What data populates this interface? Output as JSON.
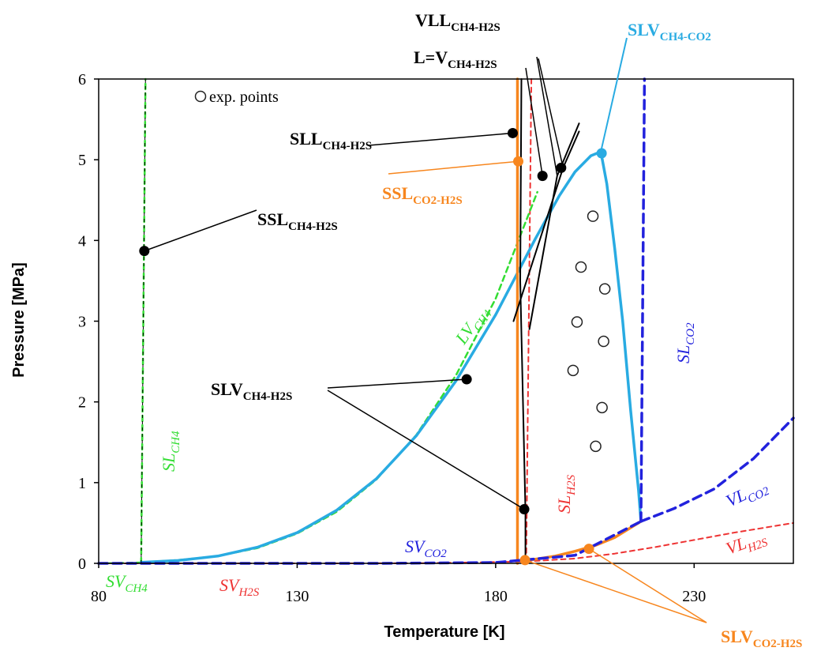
{
  "chart_data": {
    "type": "line",
    "title": "",
    "xlabel": "Temperature [K]",
    "ylabel": "Pressure [MPa]",
    "xlim": [
      80,
      255
    ],
    "ylim": [
      0,
      6
    ],
    "x_ticks": [
      80,
      130,
      180,
      230
    ],
    "y_ticks": [
      0,
      1,
      2,
      3,
      4,
      5,
      6
    ],
    "grid": false,
    "legend": {
      "label": "exp. points",
      "placement": "top-left",
      "marker": "open-circle"
    },
    "colors": {
      "ch4": "#33dd33",
      "h2s": "#ee3333",
      "co2": "#2222dd",
      "slv_ch4_co2": "#29abe2",
      "co2_h2s": "#f7861e",
      "ch4_h2s": "#000000"
    },
    "series": [
      {
        "name": "SL CH4",
        "color": "#33dd33",
        "dash": "dashed",
        "points": [
          [
            90.7,
            0
          ],
          [
            91.8,
            6
          ]
        ]
      },
      {
        "name": "SV CH4",
        "color": "#33dd33",
        "dash": "dashed",
        "points": [
          [
            80,
            0
          ],
          [
            90.7,
            0.012
          ]
        ]
      },
      {
        "name": "LV CH4",
        "color": "#33dd33",
        "dash": "dashed",
        "points": [
          [
            90.7,
            0.012
          ],
          [
            100,
            0.04
          ],
          [
            110,
            0.09
          ],
          [
            120,
            0.19
          ],
          [
            130,
            0.37
          ],
          [
            140,
            0.64
          ],
          [
            150,
            1.04
          ],
          [
            160,
            1.59
          ],
          [
            170,
            2.33
          ],
          [
            180,
            3.28
          ],
          [
            190.5,
            4.6
          ]
        ]
      },
      {
        "name": "SL H2S",
        "color": "#ee3333",
        "dash": "dashed",
        "points": [
          [
            187.7,
            0.023
          ],
          [
            189,
            6
          ]
        ]
      },
      {
        "name": "SV H2S",
        "color": "#ee3333",
        "dash": "dashed",
        "points": [
          [
            80,
            0
          ],
          [
            130,
            0
          ],
          [
            160,
            0.001
          ],
          [
            187.7,
            0.023
          ]
        ]
      },
      {
        "name": "VL H2S",
        "color": "#ee3333",
        "dash": "dashed",
        "points": [
          [
            187.7,
            0.023
          ],
          [
            200,
            0.06
          ],
          [
            210,
            0.12
          ],
          [
            220,
            0.2
          ],
          [
            230,
            0.29
          ],
          [
            240,
            0.38
          ],
          [
            255,
            0.5
          ]
        ]
      },
      {
        "name": "SL CO2",
        "color": "#2222dd",
        "dash": "dashed",
        "points": [
          [
            216.6,
            0.52
          ],
          [
            217.5,
            6
          ]
        ]
      },
      {
        "name": "SV CO2",
        "color": "#2222dd",
        "dash": "dashed",
        "points": [
          [
            80,
            0
          ],
          [
            150,
            0
          ],
          [
            180,
            0.01
          ],
          [
            200,
            0.1
          ],
          [
            216.6,
            0.52
          ]
        ]
      },
      {
        "name": "VL CO2",
        "color": "#2222dd",
        "dash": "dashed",
        "points": [
          [
            216.6,
            0.52
          ],
          [
            225,
            0.68
          ],
          [
            235,
            0.92
          ],
          [
            245,
            1.3
          ],
          [
            255,
            1.8
          ]
        ]
      },
      {
        "name": "SLV CH4-CO2",
        "color": "#29abe2",
        "dash": "solid",
        "points": [
          [
            90.7,
            0.012
          ],
          [
            100,
            0.035
          ],
          [
            110,
            0.09
          ],
          [
            120,
            0.2
          ],
          [
            130,
            0.38
          ],
          [
            140,
            0.66
          ],
          [
            150,
            1.05
          ],
          [
            160,
            1.58
          ],
          [
            170,
            2.26
          ],
          [
            180,
            3.08
          ],
          [
            190,
            4.02
          ],
          [
            196,
            4.55
          ],
          [
            200,
            4.85
          ],
          [
            204,
            5.05
          ],
          [
            206.5,
            5.1
          ],
          [
            208,
            4.7
          ],
          [
            210,
            3.9
          ],
          [
            212,
            3.0
          ],
          [
            214,
            1.9
          ],
          [
            216,
            0.9
          ],
          [
            216.6,
            0.52
          ]
        ]
      },
      {
        "name": "SSL CO2-H2S",
        "color": "#f7861e",
        "dash": "solid",
        "points": [
          [
            185.5,
            6
          ],
          [
            185.5,
            0
          ]
        ]
      },
      {
        "name": "SLV CO2-H2S",
        "color": "#f7861e",
        "dash": "solid",
        "points": [
          [
            187.3,
            0.03
          ],
          [
            195,
            0.09
          ],
          [
            200,
            0.15
          ],
          [
            205,
            0.22
          ],
          [
            210,
            0.32
          ],
          [
            216.6,
            0.52
          ]
        ]
      },
      {
        "name": "SLL CH4-H2S",
        "color": "#000000",
        "dash": "solid",
        "points": [
          [
            186.5,
            6
          ],
          [
            186.2,
            3.5
          ],
          [
            187.5,
            0.65
          ],
          [
            187.5,
            0.05
          ]
        ]
      },
      {
        "name": "VLL CH4-H2S",
        "color": "#000000",
        "dash": "solid",
        "points": [
          [
            188.5,
            2.9
          ],
          [
            195.5,
            4.8
          ],
          [
            201,
            5.45
          ]
        ]
      },
      {
        "name": "L=V CH4-H2S",
        "color": "#000000",
        "dash": "solid",
        "points": [
          [
            184.5,
            3.0
          ],
          [
            197,
            4.9
          ],
          [
            201,
            5.35
          ]
        ]
      }
    ],
    "annotation_points": [
      {
        "x": 91.5,
        "y": 3.87,
        "color": "#000000"
      },
      {
        "x": 184.3,
        "y": 5.33,
        "color": "#000000"
      },
      {
        "x": 191.8,
        "y": 4.8,
        "color": "#000000"
      },
      {
        "x": 196.5,
        "y": 4.9,
        "color": "#000000"
      },
      {
        "x": 172.7,
        "y": 2.28,
        "color": "#000000"
      },
      {
        "x": 187.2,
        "y": 0.67,
        "color": "#000000"
      },
      {
        "x": 185.7,
        "y": 4.98,
        "color": "#f7861e"
      },
      {
        "x": 187.4,
        "y": 0.04,
        "color": "#f7861e"
      },
      {
        "x": 203.5,
        "y": 0.18,
        "color": "#f7861e"
      },
      {
        "x": 206.7,
        "y": 5.08,
        "color": "#29abe2"
      }
    ],
    "exp_points": [
      {
        "x": 204.5,
        "y": 4.3
      },
      {
        "x": 201.5,
        "y": 3.67
      },
      {
        "x": 207.5,
        "y": 3.4
      },
      {
        "x": 200.5,
        "y": 2.99
      },
      {
        "x": 207.2,
        "y": 2.75
      },
      {
        "x": 199.5,
        "y": 2.39
      },
      {
        "x": 206.8,
        "y": 1.93
      },
      {
        "x": 205.2,
        "y": 1.45
      }
    ],
    "annotations": [
      {
        "main": "VLL",
        "sub": "CH4-H2S",
        "color": "#000000"
      },
      {
        "main": "L=V",
        "sub": "CH4-H2S",
        "color": "#000000"
      },
      {
        "main": "SLV",
        "sub": "CH4-CO2",
        "color": "#29abe2"
      },
      {
        "main": "SLL",
        "sub": "CH4-H2S",
        "color": "#000000"
      },
      {
        "main": "SSL",
        "sub": "CO2-H2S",
        "color": "#f7861e"
      },
      {
        "main": "SSL",
        "sub": "CH4-H2S",
        "color": "#000000"
      },
      {
        "main": "SLV",
        "sub": "CH4-H2S",
        "color": "#000000"
      },
      {
        "main": "SLV",
        "sub": "CO2-H2S",
        "color": "#f7861e"
      }
    ],
    "curve_labels": [
      {
        "main": "LV",
        "sub": "CH4",
        "color": "#33dd33"
      },
      {
        "main": "SL",
        "sub": "CH4",
        "color": "#33dd33"
      },
      {
        "main": "SV",
        "sub": "CH4",
        "color": "#33dd33"
      },
      {
        "main": "SV",
        "sub": "H2S",
        "color": "#ee3333"
      },
      {
        "main": "SL",
        "sub": "H2S",
        "color": "#ee3333"
      },
      {
        "main": "VL",
        "sub": "H2S",
        "color": "#ee3333"
      },
      {
        "main": "SV",
        "sub": "CO2",
        "color": "#2222dd"
      },
      {
        "main": "SL",
        "sub": "CO2",
        "color": "#2222dd"
      },
      {
        "main": "VL",
        "sub": "CO2",
        "color": "#2222dd"
      }
    ]
  }
}
